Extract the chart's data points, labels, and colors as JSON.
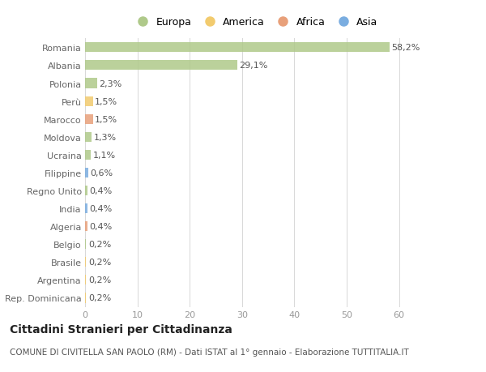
{
  "countries": [
    "Romania",
    "Albania",
    "Polonia",
    "Perù",
    "Marocco",
    "Moldova",
    "Ucraina",
    "Filippine",
    "Regno Unito",
    "India",
    "Algeria",
    "Belgio",
    "Brasile",
    "Argentina",
    "Rep. Dominicana"
  ],
  "values": [
    58.2,
    29.1,
    2.3,
    1.5,
    1.5,
    1.3,
    1.1,
    0.6,
    0.4,
    0.4,
    0.4,
    0.2,
    0.2,
    0.2,
    0.2
  ],
  "labels": [
    "58,2%",
    "29,1%",
    "2,3%",
    "1,5%",
    "1,5%",
    "1,3%",
    "1,1%",
    "0,6%",
    "0,4%",
    "0,4%",
    "0,4%",
    "0,2%",
    "0,2%",
    "0,2%",
    "0,2%"
  ],
  "continents": [
    "Europa",
    "Europa",
    "Europa",
    "America",
    "Africa",
    "Europa",
    "Europa",
    "Asia",
    "Europa",
    "Asia",
    "Africa",
    "Europa",
    "America",
    "America",
    "America"
  ],
  "continent_colors": {
    "Europa": "#afc98a",
    "America": "#f2cb6e",
    "Africa": "#e8a07a",
    "Asia": "#7aade0"
  },
  "legend_order": [
    "Europa",
    "America",
    "Africa",
    "Asia"
  ],
  "title": "Cittadini Stranieri per Cittadinanza",
  "subtitle": "COMUNE DI CIVITELLA SAN PAOLO (RM) - Dati ISTAT al 1° gennaio - Elaborazione TUTTITALIA.IT",
  "xlim": [
    0,
    65
  ],
  "xticks": [
    0,
    10,
    20,
    30,
    40,
    50,
    60
  ],
  "bg_color": "#ffffff",
  "grid_color": "#d8d8d8",
  "bar_height": 0.55,
  "title_fontsize": 10,
  "subtitle_fontsize": 7.5,
  "label_fontsize": 8,
  "tick_fontsize": 8,
  "legend_fontsize": 9
}
